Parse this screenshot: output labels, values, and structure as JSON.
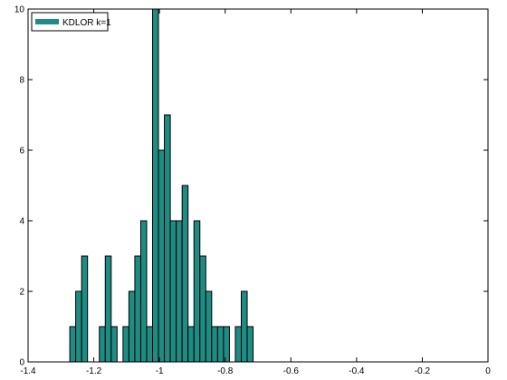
{
  "chart_data": {
    "type": "bar",
    "legend": {
      "entries": [
        "KDLOR k=1"
      ],
      "placement": "top-left"
    },
    "series": [
      {
        "name": "KDLOR k=1",
        "color": "#1f8c84",
        "edgecolor": "#000000",
        "bins": [
          {
            "x0": -1.273,
            "x1": -1.255,
            "value": 1
          },
          {
            "x0": -1.255,
            "x1": -1.237,
            "value": 2
          },
          {
            "x0": -1.237,
            "x1": -1.219,
            "value": 3
          },
          {
            "x0": -1.219,
            "x1": -1.201,
            "value": 0
          },
          {
            "x0": -1.201,
            "x1": -1.183,
            "value": 0
          },
          {
            "x0": -1.183,
            "x1": -1.165,
            "value": 1
          },
          {
            "x0": -1.165,
            "x1": -1.147,
            "value": 3
          },
          {
            "x0": -1.147,
            "x1": -1.129,
            "value": 1
          },
          {
            "x0": -1.129,
            "x1": -1.111,
            "value": 0
          },
          {
            "x0": -1.111,
            "x1": -1.093,
            "value": 1
          },
          {
            "x0": -1.093,
            "x1": -1.075,
            "value": 2
          },
          {
            "x0": -1.075,
            "x1": -1.057,
            "value": 3
          },
          {
            "x0": -1.057,
            "x1": -1.039,
            "value": 4
          },
          {
            "x0": -1.039,
            "x1": -1.021,
            "value": 1
          },
          {
            "x0": -1.021,
            "x1": -1.003,
            "value": 10
          },
          {
            "x0": -1.003,
            "x1": -0.985,
            "value": 6
          },
          {
            "x0": -0.985,
            "x1": -0.967,
            "value": 7
          },
          {
            "x0": -0.967,
            "x1": -0.949,
            "value": 4
          },
          {
            "x0": -0.949,
            "x1": -0.931,
            "value": 4
          },
          {
            "x0": -0.931,
            "x1": -0.913,
            "value": 5
          },
          {
            "x0": -0.913,
            "x1": -0.895,
            "value": 1
          },
          {
            "x0": -0.895,
            "x1": -0.877,
            "value": 4
          },
          {
            "x0": -0.877,
            "x1": -0.859,
            "value": 3
          },
          {
            "x0": -0.859,
            "x1": -0.841,
            "value": 2
          },
          {
            "x0": -0.841,
            "x1": -0.823,
            "value": 1
          },
          {
            "x0": -0.823,
            "x1": -0.805,
            "value": 1
          },
          {
            "x0": -0.805,
            "x1": -0.787,
            "value": 1
          },
          {
            "x0": -0.787,
            "x1": -0.769,
            "value": 0
          },
          {
            "x0": -0.769,
            "x1": -0.751,
            "value": 1
          },
          {
            "x0": -0.751,
            "x1": -0.733,
            "value": 2
          },
          {
            "x0": -0.733,
            "x1": -0.715,
            "value": 1
          }
        ]
      }
    ],
    "xlim": [
      -1.4,
      0
    ],
    "ylim": [
      0,
      10
    ],
    "xticks": [
      {
        "value": -1.4,
        "label": "-1.4"
      },
      {
        "value": -1.2,
        "label": "-1.2"
      },
      {
        "value": -1.0,
        "label": "-1"
      },
      {
        "value": -0.8,
        "label": "-0.8"
      },
      {
        "value": -0.6,
        "label": "-0.6"
      },
      {
        "value": -0.4,
        "label": "-0.4"
      },
      {
        "value": -0.2,
        "label": "-0.2"
      },
      {
        "value": 0.0,
        "label": "0"
      }
    ],
    "yticks": [
      {
        "value": 0,
        "label": "0"
      },
      {
        "value": 2,
        "label": "2"
      },
      {
        "value": 4,
        "label": "4"
      },
      {
        "value": 6,
        "label": "6"
      },
      {
        "value": 8,
        "label": "8"
      },
      {
        "value": 10,
        "label": "10"
      }
    ],
    "grid": false
  }
}
